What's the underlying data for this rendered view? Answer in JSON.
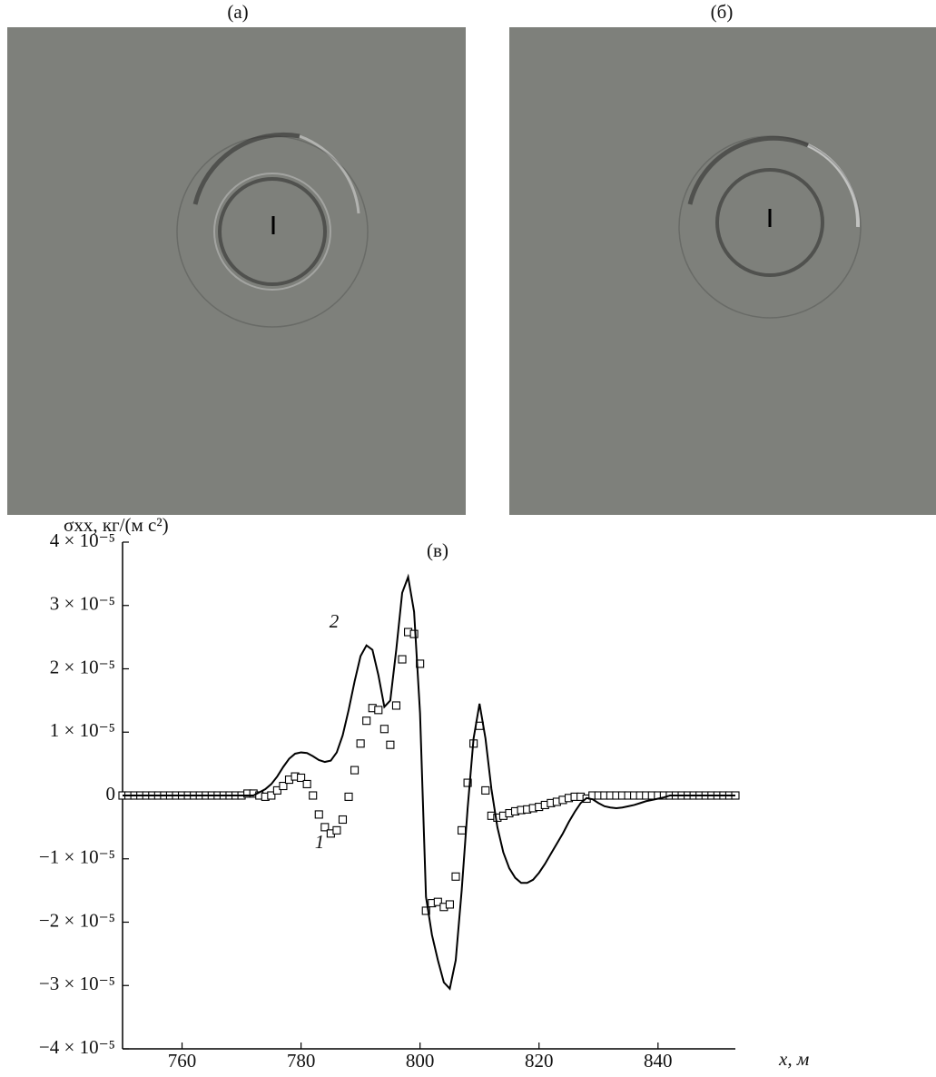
{
  "panels": [
    {
      "label": "(a)"
    },
    {
      "label": "(б)"
    }
  ],
  "chart_data": {
    "type": "line",
    "title": "(в)",
    "y_label": "σxx, кг/(м с²)",
    "x_label": "x, м",
    "xlim": [
      750,
      853
    ],
    "xticks": [
      760,
      780,
      800,
      820,
      840
    ],
    "ylim": [
      -4e-05,
      4e-05
    ],
    "yticks": [
      {
        "value": -4e-05,
        "label": "−4 × 10⁻⁵"
      },
      {
        "value": -3e-05,
        "label": "−3 × 10⁻⁵"
      },
      {
        "value": -2e-05,
        "label": "−2 × 10⁻⁵"
      },
      {
        "value": -1e-05,
        "label": "−1 × 10⁻⁵"
      },
      0,
      {
        "value": 1e-05,
        "label": "1 × 10⁻⁵"
      },
      {
        "value": 2e-05,
        "label": "2 × 10⁻⁵"
      },
      {
        "value": 3e-05,
        "label": "3 × 10⁻⁵"
      },
      {
        "value": 4e-05,
        "label": "4 × 10⁻⁵"
      }
    ],
    "x": [
      750,
      751,
      752,
      753,
      754,
      755,
      756,
      757,
      758,
      759,
      760,
      761,
      762,
      763,
      764,
      765,
      766,
      767,
      768,
      769,
      770,
      771,
      772,
      773,
      774,
      775,
      776,
      777,
      778,
      779,
      780,
      781,
      782,
      783,
      784,
      785,
      786,
      787,
      788,
      789,
      790,
      791,
      792,
      793,
      794,
      795,
      796,
      797,
      798,
      799,
      800,
      801,
      802,
      803,
      804,
      805,
      806,
      807,
      808,
      809,
      810,
      811,
      812,
      813,
      814,
      815,
      816,
      817,
      818,
      819,
      820,
      821,
      822,
      823,
      824,
      825,
      826,
      827,
      828,
      829,
      830,
      831,
      832,
      833,
      834,
      835,
      836,
      837,
      838,
      839,
      840,
      841,
      842,
      843,
      844,
      845,
      846,
      847,
      848,
      849,
      850,
      851,
      852,
      853
    ],
    "series": [
      {
        "name": "1",
        "marker": "square",
        "color": "#000000",
        "values": [
          0,
          0,
          0,
          0,
          0,
          0,
          0,
          0,
          0,
          0,
          0,
          0,
          0,
          0,
          0,
          0,
          0,
          0,
          0,
          0,
          0,
          3e-07,
          3e-07,
          0,
          -2e-07,
          0,
          8e-07,
          1.5e-06,
          2.5e-06,
          3e-06,
          2.8e-06,
          1.8e-06,
          0,
          -3e-06,
          -5e-06,
          -6e-06,
          -5.5e-06,
          -3.8e-06,
          -2e-07,
          4e-06,
          8.2e-06,
          1.18e-05,
          1.38e-05,
          1.35e-05,
          1.05e-05,
          8e-06,
          1.42e-05,
          2.15e-05,
          2.58e-05,
          2.55e-05,
          2.08e-05,
          -1.82e-05,
          -1.7e-05,
          -1.68e-05,
          -1.76e-05,
          -1.72e-05,
          -1.28e-05,
          -5.5e-06,
          2e-06,
          8.2e-06,
          1.1e-05,
          8e-07,
          -3.2e-06,
          -3.5e-06,
          -3.2e-06,
          -2.8e-06,
          -2.5e-06,
          -2.3e-06,
          -2.2e-06,
          -2e-06,
          -1.8e-06,
          -1.5e-06,
          -1.2e-06,
          -1e-06,
          -7e-07,
          -4e-07,
          -2e-07,
          -2e-07,
          -5e-07,
          0,
          0,
          0,
          0,
          0,
          0,
          0,
          0,
          0,
          0,
          0,
          0,
          0,
          0,
          0,
          0,
          0,
          0,
          0,
          0,
          0,
          0,
          0,
          0,
          0
        ]
      },
      {
        "name": "2",
        "marker": "none",
        "color": "#000000",
        "values": [
          0,
          0,
          0,
          0,
          0,
          0,
          0,
          0,
          0,
          0,
          0,
          0,
          0,
          0,
          0,
          0,
          0,
          0,
          0,
          0,
          0,
          0,
          0,
          5e-07,
          1e-06,
          1.8e-06,
          3e-06,
          4.5e-06,
          5.8e-06,
          6.6e-06,
          6.8e-06,
          6.7e-06,
          6.2e-06,
          5.6e-06,
          5.3e-06,
          5.5e-06,
          6.8e-06,
          9.5e-06,
          1.35e-05,
          1.8e-05,
          2.2e-05,
          2.37e-05,
          2.3e-05,
          1.9e-05,
          1.4e-05,
          1.5e-05,
          2.3e-05,
          3.2e-05,
          3.45e-05,
          2.9e-05,
          1.3e-05,
          -1.6e-05,
          -2.2e-05,
          -2.6e-05,
          -2.95e-05,
          -3.05e-05,
          -2.6e-05,
          -1.5e-05,
          -2e-06,
          9e-06,
          1.45e-05,
          9e-06,
          1e-06,
          -5e-06,
          -9e-06,
          -1.15e-05,
          -1.3e-05,
          -1.38e-05,
          -1.38e-05,
          -1.33e-05,
          -1.22e-05,
          -1.08e-05,
          -9.2e-06,
          -7.6e-06,
          -6e-06,
          -4.2e-06,
          -2.6e-06,
          -1.2e-06,
          -4e-07,
          -6e-07,
          -1.2e-06,
          -1.7e-06,
          -1.9e-06,
          -2e-06,
          -1.9e-06,
          -1.7e-06,
          -1.5e-06,
          -1.2e-06,
          -9e-07,
          -7e-07,
          -5e-07,
          -3e-07,
          0,
          0,
          0,
          0,
          0,
          0,
          0,
          0,
          0,
          0,
          0,
          0
        ]
      }
    ]
  }
}
